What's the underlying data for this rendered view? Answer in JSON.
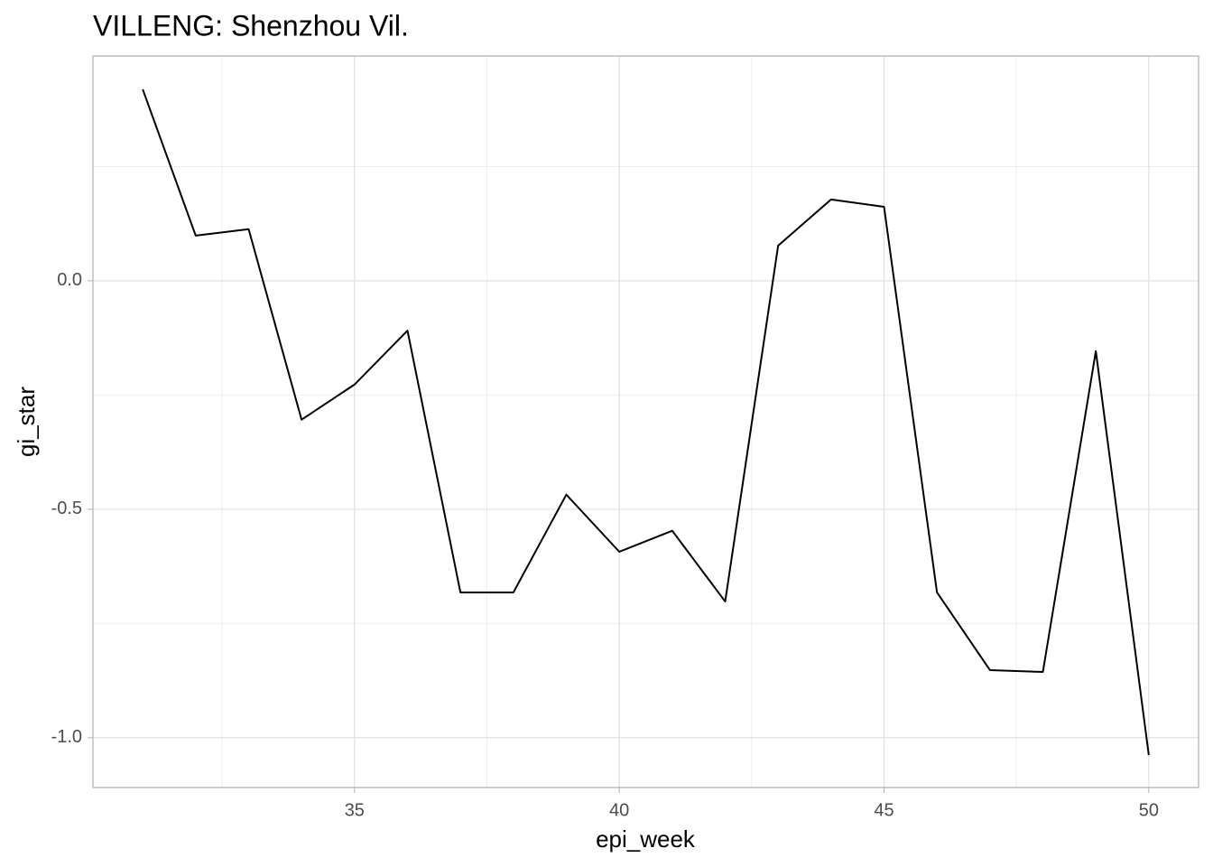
{
  "chart_data": {
    "type": "line",
    "title": "VILLENG: Shenzhou Vil.",
    "x_label": "epi_week",
    "y_label": "gi_star",
    "x": [
      31,
      32,
      33,
      34,
      35,
      36,
      37,
      38,
      39,
      40,
      41,
      42,
      43,
      44,
      45,
      46,
      47,
      48,
      49,
      50
    ],
    "series": [
      {
        "name": "gi_star",
        "color": "#000000",
        "values": [
          0.419,
          0.099,
          0.113,
          -0.304,
          -0.227,
          -0.109,
          -0.682,
          -0.682,
          -0.468,
          -0.593,
          -0.547,
          -0.702,
          0.077,
          0.178,
          0.162,
          -0.682,
          -0.852,
          -0.856,
          -0.154,
          -1.038
        ]
      }
    ],
    "xlim": [
      30.06,
      50.94
    ],
    "ylim": [
      -1.109,
      0.492
    ],
    "xticks": [
      35,
      40,
      45,
      50
    ],
    "yticks": [
      {
        "value": -1,
        "label": "-1.0"
      },
      {
        "value": -0.5,
        "label": "-0.5"
      },
      {
        "value": 0,
        "label": "0.0"
      }
    ],
    "xminor": [
      32.5,
      37.5,
      42.5,
      47.5
    ],
    "yminor": [
      -0.75,
      -0.25,
      0.25
    ],
    "grid": true
  }
}
